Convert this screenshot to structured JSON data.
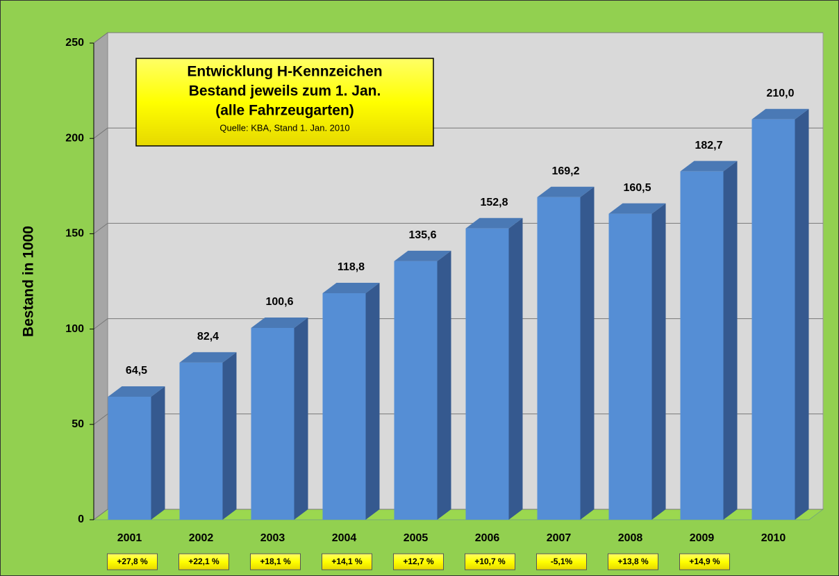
{
  "chart_data": {
    "type": "bar3d",
    "title_lines": [
      "Entwicklung H-Kennzeichen",
      "Bestand jeweils zum 1. Jan.",
      "(alle Fahrzeugarten)"
    ],
    "subtitle": "Quelle: KBA, Stand 1. Jan. 2010",
    "y_label": "Bestand in 1000",
    "categories": [
      "2001",
      "2002",
      "2003",
      "2004",
      "2005",
      "2006",
      "2007",
      "2008",
      "2009",
      "2010"
    ],
    "values": [
      64.5,
      82.4,
      100.6,
      118.8,
      135.6,
      152.8,
      169.2,
      160.5,
      182.7,
      210.0
    ],
    "value_labels": [
      "64,5",
      "82,4",
      "100,6",
      "118,8",
      "135,6",
      "152,8",
      "169,2",
      "160,5",
      "182,7",
      "210,0"
    ],
    "annotations": [
      "+27,8 %",
      "+22,1 %",
      "+18,1 %",
      "+14,1 %",
      "+12,7 %",
      "+10,7 %",
      "-5,1%",
      "+13,8 %",
      "+14,9 %"
    ],
    "color": "#558ed5",
    "ylim": [
      0,
      250
    ],
    "yticks": [
      0,
      50,
      100,
      150,
      200,
      250
    ],
    "grid": true
  }
}
